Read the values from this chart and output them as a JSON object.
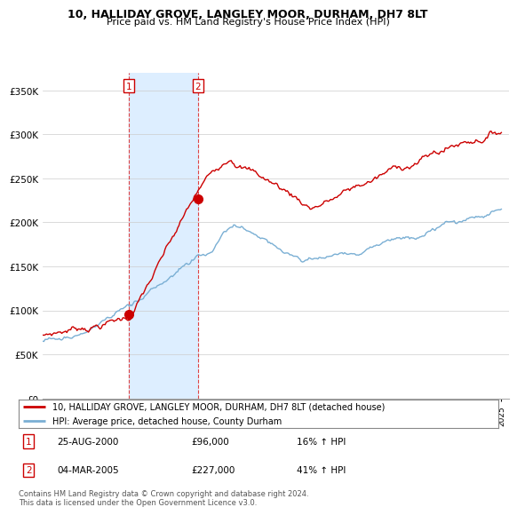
{
  "title": "10, HALLIDAY GROVE, LANGLEY MOOR, DURHAM, DH7 8LT",
  "subtitle": "Price paid vs. HM Land Registry's House Price Index (HPI)",
  "legend_line1": "10, HALLIDAY GROVE, LANGLEY MOOR, DURHAM, DH7 8LT (detached house)",
  "legend_line2": "HPI: Average price, detached house, County Durham",
  "transaction1_date": "25-AUG-2000",
  "transaction1_price": "£96,000",
  "transaction1_hpi": "16% ↑ HPI",
  "transaction2_date": "04-MAR-2005",
  "transaction2_price": "£227,000",
  "transaction2_hpi": "41% ↑ HPI",
  "footnote": "Contains HM Land Registry data © Crown copyright and database right 2024.\nThis data is licensed under the Open Government Licence v3.0.",
  "ylim": [
    0,
    370000
  ],
  "yticks": [
    0,
    50000,
    100000,
    150000,
    200000,
    250000,
    300000,
    350000
  ],
  "year_start": 1995,
  "year_end": 2025,
  "transaction1_year": 2000.65,
  "transaction2_year": 2005.17,
  "transaction1_value": 96000,
  "transaction2_value": 227000,
  "red_color": "#cc0000",
  "blue_color": "#7aafd4",
  "shade_color": "#ddeeff"
}
